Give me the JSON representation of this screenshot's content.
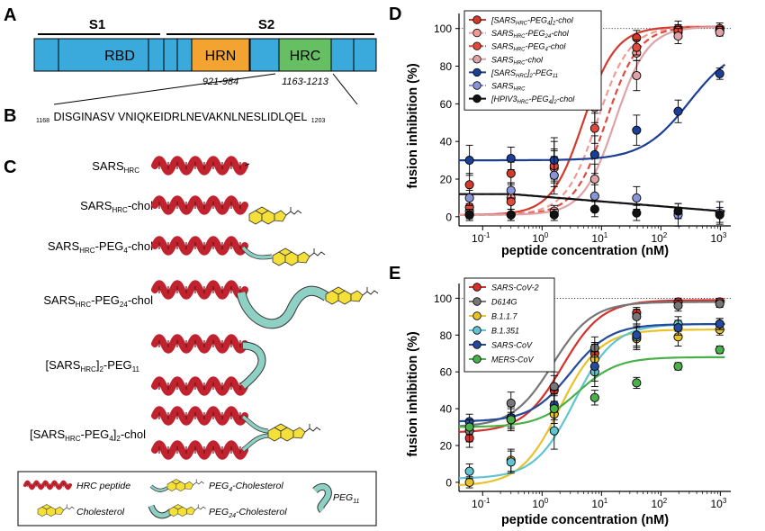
{
  "panels": {
    "a": {
      "letter": "A",
      "s1": "S1",
      "s2": "S2",
      "domains": [
        {
          "name": "RBD",
          "color": "#3aaadc"
        },
        {
          "name": "HRN",
          "color": "#f2a330"
        },
        {
          "name": "HRC",
          "color": "#67bf63"
        }
      ],
      "base_color": "#3aaadc",
      "hrn_range": "921-984",
      "hrc_range": "1163-1213"
    },
    "b": {
      "letter": "B",
      "start": "1168",
      "sequence": "DISGINASV VNIQKEIDRLNEVAKNLNESLIDLQEL",
      "end": "1203"
    },
    "c": {
      "letter": "C",
      "constructs": [
        {
          "base": "SARS",
          "sub": "HRC",
          "suffix": "",
          "kind": "peptide"
        },
        {
          "base": "SARS",
          "sub": "HRC",
          "suffix": "-chol",
          "kind": "chol"
        },
        {
          "base": "SARS",
          "sub": "HRC",
          "suffix": "-PEG",
          "sub2": "4",
          "suffix2": "-chol",
          "kind": "peg4"
        },
        {
          "base": "SARS",
          "sub": "HRC",
          "suffix": "-PEG",
          "sub2": "24",
          "suffix2": "-chol",
          "kind": "peg24"
        },
        {
          "pre": "[SARS",
          "sub": "HRC",
          "mid": "]",
          "sub2": "2",
          "suffix": "-PEG",
          "sub3": "11",
          "kind": "dimer"
        },
        {
          "pre": "[SARS",
          "sub": "HRC",
          "mid": "-PEG",
          "sub2": "4",
          "mid2": "]",
          "sub3": "2",
          "suffix": "-chol",
          "kind": "dimerchol"
        }
      ],
      "legend": {
        "hrc_peptide": "HRC peptide",
        "peg4_chol_a": "PEG",
        "peg4_chol_sub": "4",
        "peg4_chol_b": "-Cholesterol",
        "peg11_a": "PEG",
        "peg11_sub": "11",
        "cholesterol": "Cholesterol",
        "peg24_chol_a": "PEG",
        "peg24_chol_sub": "24",
        "peg24_chol_b": "-Cholesterol"
      },
      "colors": {
        "helix": "#c0222e",
        "helix_dark": "#6e0f17",
        "chol": "#f5e03a",
        "peg": "#8fd0c4"
      }
    },
    "d": {
      "letter": "D",
      "ylabel": "fusion inhibition (%)",
      "xlabel": "peptide concentration (nM)",
      "legend": [
        {
          "a": "[SARS",
          "sub": "HRC",
          "b": "-PEG",
          "sub2": "4",
          "c": "]",
          "sub3": "2",
          "d": "-chol"
        },
        {
          "a": "SARS",
          "sub": "HRC",
          "b": "-PEG",
          "sub2": "24",
          "c": "-chol"
        },
        {
          "a": "SARS",
          "sub": "HRC",
          "b": "-PEG",
          "sub2": "4",
          "c": "-chol"
        },
        {
          "a": "SARS",
          "sub": "HRC",
          "b": "-chol"
        },
        {
          "a": "[SARS",
          "sub": "HRC",
          "b": "]",
          "sub2": "2",
          "c": "-PEG",
          "sub3": "11"
        },
        {
          "a": "SARS",
          "sub": "HRC"
        },
        {
          "a": "[HPIV3",
          "sub": "HRC",
          "b": "-PEG",
          "sub2": "4",
          "c": "]",
          "sub3": "2",
          "d": "-chol"
        }
      ],
      "yticks": [
        "0",
        "20",
        "40",
        "60",
        "80",
        "100"
      ],
      "xticks": [
        {
          "base": "10",
          "exp": "-1"
        },
        {
          "base": "10",
          "exp": "0"
        },
        {
          "base": "10",
          "exp": "1"
        },
        {
          "base": "10",
          "exp": "2"
        },
        {
          "base": "10",
          "exp": "3"
        }
      ]
    },
    "e": {
      "letter": "E",
      "ylabel": "fusion inhibition (%)",
      "xlabel": "peptide concentration (nM)",
      "legend": [
        "SARS-CoV-2",
        "D614G",
        "B.1.1.7",
        "B.1.351",
        "SARS-CoV",
        "MERS-CoV"
      ],
      "yticks": [
        "0",
        "20",
        "40",
        "60",
        "80",
        "100"
      ],
      "xticks": [
        {
          "base": "10",
          "exp": "-1"
        },
        {
          "base": "10",
          "exp": "0"
        },
        {
          "base": "10",
          "exp": "1"
        },
        {
          "base": "10",
          "exp": "2"
        },
        {
          "base": "10",
          "exp": "3"
        }
      ]
    }
  },
  "chart_data": [
    {
      "type": "scatter",
      "panel": "D",
      "title": "",
      "xlabel": "peptide concentration (nM)",
      "ylabel": "fusion inhibition (%)",
      "xscale": "log",
      "xlim": [
        0.04,
        1500
      ],
      "ylim": [
        -2,
        108
      ],
      "reference_line": 100,
      "legend_position": "top-left",
      "x": [
        0.06,
        0.3,
        1.6,
        7.7,
        39,
        195,
        977
      ],
      "series": [
        {
          "name": "[SARSHRC-PEG4]2-chol",
          "color": "#d23a2c",
          "style": "solid",
          "ec50": 5,
          "values": [
            17,
            23,
            30,
            70,
            95,
            100,
            100
          ],
          "errors": [
            6,
            6,
            12,
            12,
            4,
            4,
            3
          ]
        },
        {
          "name": "SARSHRC-PEG24-chol",
          "color": "#ef9a95",
          "style": "dashed",
          "ec50": 8.5,
          "values": [
            3,
            10,
            26,
            58,
            87,
            98,
            99
          ],
          "errors": [
            4,
            8,
            10,
            8,
            4,
            3,
            2
          ]
        },
        {
          "name": "SARSHRC-PEG4-chol",
          "color": "#e04a3c",
          "style": "dashed",
          "ec50": 12,
          "values": [
            5,
            8,
            27,
            47,
            90,
            99,
            99
          ],
          "errors": [
            4,
            6,
            8,
            8,
            4,
            3,
            2
          ]
        },
        {
          "name": "SARSHRC-chol",
          "color": "#dea3a6",
          "style": "solid",
          "ec50": 17,
          "values": [
            1,
            1,
            3,
            20,
            75,
            96,
            98
          ],
          "errors": [
            3,
            3,
            3,
            8,
            8,
            4,
            2
          ]
        },
        {
          "name": "[SARSHRC]2-PEG11",
          "color": "#1c3f96",
          "style": "solid",
          "ec50": 300,
          "values": [
            30,
            31,
            30,
            33,
            46,
            56,
            76
          ],
          "errors": [
            8,
            6,
            10,
            10,
            8,
            6,
            3
          ]
        },
        {
          "name": "SARSHRC",
          "color": "#8a94d8",
          "style": "dashed",
          "ec50": 0,
          "values": [
            10,
            14,
            22,
            11,
            10,
            1,
            2
          ],
          "errors": [
            4,
            4,
            10,
            6,
            6,
            6,
            6
          ]
        },
        {
          "name": "[HPIV3HRC-PEG4]2-chol",
          "color": "#111111",
          "style": "solid",
          "ec50": 0,
          "values": [
            1,
            1,
            1,
            4,
            2,
            3,
            1
          ],
          "errors": [
            3,
            3,
            3,
            4,
            4,
            4,
            4
          ]
        }
      ]
    },
    {
      "type": "scatter",
      "panel": "E",
      "title": "",
      "xlabel": "peptide concentration (nM)",
      "ylabel": "fusion inhibition (%)",
      "xscale": "log",
      "xlim": [
        0.04,
        1500
      ],
      "ylim": [
        -2,
        108
      ],
      "reference_line": 100,
      "legend_position": "top-left",
      "x": [
        0.06,
        0.3,
        1.6,
        7.7,
        39,
        195,
        977
      ],
      "series": [
        {
          "name": "SARS-CoV-2",
          "color": "#d4312a",
          "ec50": 2.2,
          "bottom": 27,
          "top": 99,
          "values": [
            24,
            34,
            50,
            70,
            92,
            98,
            98
          ],
          "errors": [
            5,
            6,
            8,
            6,
            3,
            2,
            2
          ]
        },
        {
          "name": "D614G",
          "color": "#777777",
          "ec50": 1.5,
          "bottom": 30,
          "top": 98,
          "values": [
            28,
            43,
            52,
            73,
            90,
            96,
            97
          ],
          "errors": [
            6,
            6,
            8,
            6,
            4,
            3,
            2
          ]
        },
        {
          "name": "B.1.1.7",
          "color": "#e8c22a",
          "ec50": 2.0,
          "bottom": -2,
          "top": 83,
          "values": [
            0,
            12,
            37,
            67,
            78,
            79,
            83
          ],
          "errors": [
            3,
            6,
            10,
            8,
            6,
            5,
            3
          ]
        },
        {
          "name": "B.1.351",
          "color": "#62c4d2",
          "ec50": 3.5,
          "bottom": 2,
          "top": 86,
          "values": [
            6,
            11,
            28,
            60,
            79,
            86,
            86
          ],
          "errors": [
            4,
            6,
            10,
            8,
            6,
            4,
            3
          ]
        },
        {
          "name": "SARS-CoV",
          "color": "#234a9c",
          "ec50": 3.0,
          "bottom": 33,
          "top": 86,
          "values": [
            33,
            35,
            42,
            63,
            80,
            84,
            86
          ],
          "errors": [
            4,
            6,
            8,
            8,
            6,
            4,
            3
          ]
        },
        {
          "name": "MERS-CoV",
          "color": "#4ab04a",
          "ec50": 4.0,
          "bottom": 30,
          "top": 68,
          "values": [
            30,
            34,
            40,
            46,
            54,
            63,
            72
          ],
          "errors": [
            4,
            4,
            8,
            4,
            3,
            2,
            2
          ]
        }
      ]
    }
  ]
}
